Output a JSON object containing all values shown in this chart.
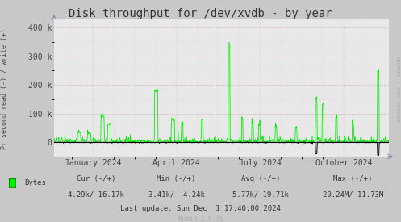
{
  "title": "Disk throughput for /dev/xvdb - by year",
  "ylabel": "Pr second read (-) / write (+)",
  "background_color": "#C8C8C8",
  "plot_bg_color": "#E8E8E8",
  "grid_color_minor": "#DDAAAA",
  "grid_color_major": "#CC8888",
  "line_color_green": "#00EE00",
  "line_color_black": "#000000",
  "ylim": [
    -50000,
    430000
  ],
  "yticks": [
    0,
    100000,
    200000,
    300000,
    400000
  ],
  "ytick_labels": [
    "0",
    "100 k",
    "200 k",
    "300 k",
    "400 k"
  ],
  "xlabel_ticks": [
    "January 2024",
    "April 2024",
    "July 2024",
    "October 2024"
  ],
  "xlabel_tick_positions": [
    0.115,
    0.365,
    0.615,
    0.865
  ],
  "legend_label": "Bytes",
  "last_update": "Last update: Sun Dec  1 17:40:00 2024",
  "munin_version": "Munin 2.0.75",
  "rrdtool_label": "RRDTOOL / TOBI OETIKER",
  "title_fontsize": 10,
  "axis_fontsize": 7,
  "stats_fontsize": 6.5,
  "n_points": 800
}
